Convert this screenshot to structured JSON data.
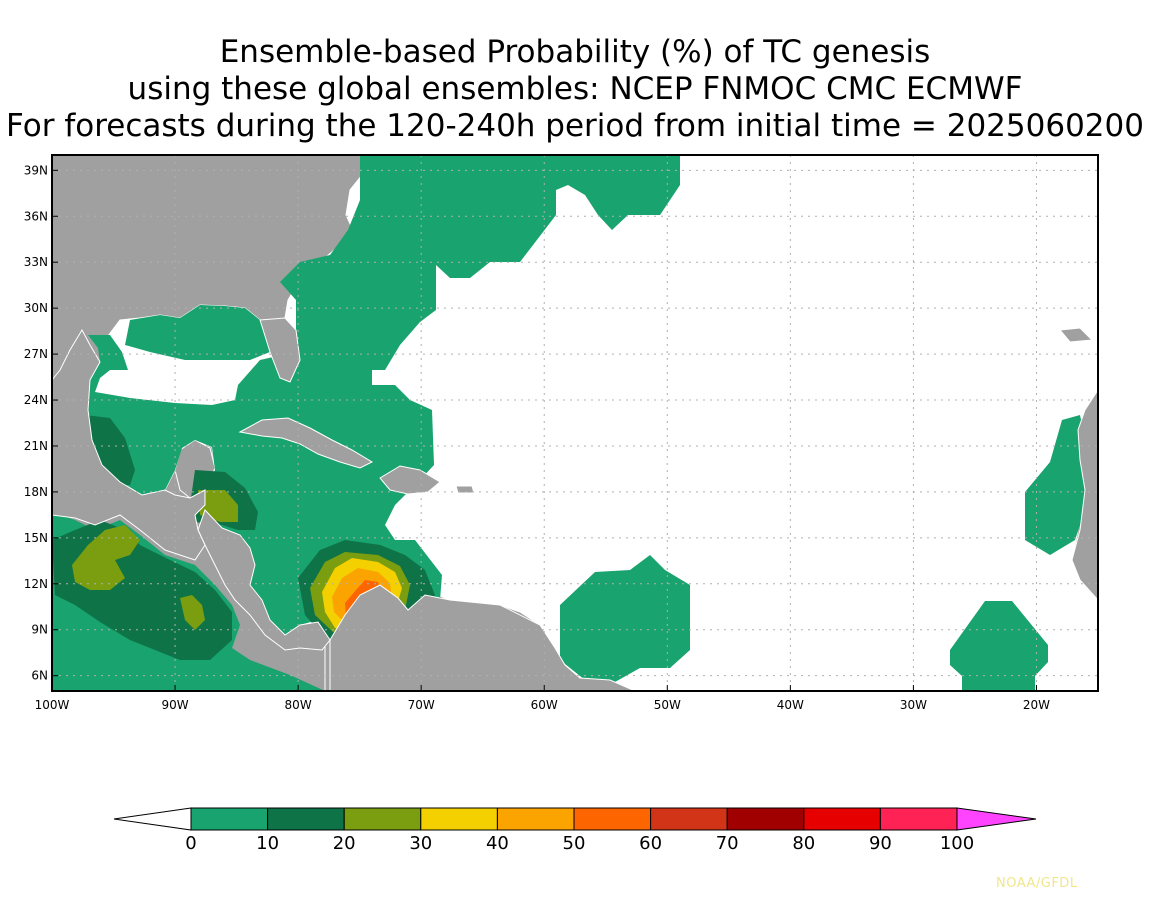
{
  "title": {
    "line1": "Ensemble-based Probability (%) of TC genesis",
    "line2": "using these global ensembles:   NCEP FNMOC CMC ECMWF",
    "line3": "For forecasts during the 120-240h period from initial time = 2025060200"
  },
  "map": {
    "lon_range": [
      -100,
      -15
    ],
    "lat_range": [
      5,
      40
    ],
    "lat_ticks": [
      "39N",
      "36N",
      "33N",
      "30N",
      "27N",
      "24N",
      "21N",
      "18N",
      "15N",
      "12N",
      "9N",
      "6N"
    ],
    "lat_tick_values": [
      39,
      36,
      33,
      30,
      27,
      24,
      21,
      18,
      15,
      12,
      9,
      6
    ],
    "lon_ticks": [
      "100W",
      "90W",
      "80W",
      "70W",
      "60W",
      "50W",
      "40W",
      "30W",
      "20W"
    ],
    "lon_tick_values": [
      -100,
      -90,
      -80,
      -70,
      -60,
      -50,
      -40,
      -30,
      -20
    ],
    "grid": "dotted",
    "land_color": "#a0a0a0",
    "ocean_color": "#ffffff"
  },
  "colorbar": {
    "labels": [
      "0",
      "10",
      "20",
      "30",
      "40",
      "50",
      "60",
      "70",
      "80",
      "90",
      "100"
    ],
    "colors": [
      "#18a36f",
      "#0e7347",
      "#7a9e10",
      "#f4d000",
      "#fba400",
      "#fd6500",
      "#d23417",
      "#a00000",
      "#e60000",
      "#ff2255"
    ],
    "over_color": "#ff44ff",
    "under_color": "#ffffff"
  },
  "credit": "NOAA/GFDL"
}
